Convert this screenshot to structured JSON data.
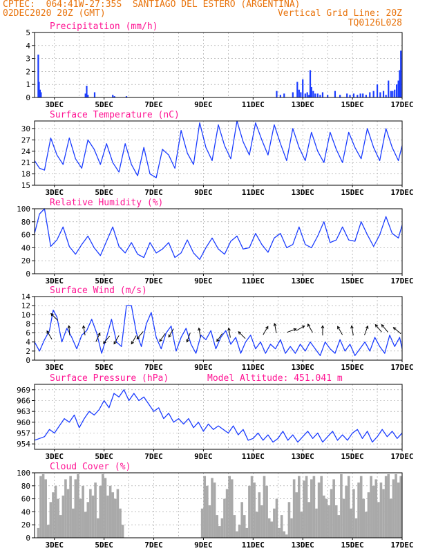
{
  "header": {
    "line1": "CPTEC:  064:41W-27:35S  SANTIAGO DEL ESTERO (ARGENTINA)",
    "date": "02DEC2020 20Z (GMT)",
    "grid_note": "Vertical Grid Line: 20Z",
    "model_code": "TQ0126L028",
    "accent_color": "#e8730c",
    "title_color": "#ff1493",
    "series_color": "#1a3cff"
  },
  "x_axis": {
    "tick_labels": [
      "3DEC",
      "5DEC",
      "7DEC",
      "9DEC",
      "11DEC",
      "13DEC",
      "15DEC",
      "17DEC"
    ],
    "tick_days": [
      3,
      5,
      7,
      9,
      11,
      13,
      15,
      17
    ],
    "range_days": [
      2.2,
      17.0
    ],
    "vertical_grid_step_days": 1
  },
  "chart_data": [
    {
      "id": "precip",
      "type": "bar",
      "title": "Precipitation (mm/h)",
      "ylim": [
        0,
        5
      ],
      "yticks": [
        0,
        1,
        2,
        3,
        4,
        5
      ],
      "color": "#1a3cff",
      "x": [
        2.35,
        2.38,
        2.42,
        2.46,
        4.25,
        4.3,
        4.35,
        4.62,
        5.35,
        5.42,
        5.9,
        11.95,
        12.1,
        12.25,
        12.6,
        12.78,
        12.85,
        12.92,
        13.0,
        13.1,
        13.18,
        13.25,
        13.3,
        13.35,
        13.42,
        13.5,
        13.6,
        13.7,
        13.8,
        14.0,
        14.3,
        14.5,
        14.78,
        14.9,
        15.05,
        15.2,
        15.32,
        15.42,
        15.55,
        15.7,
        15.85,
        16.0,
        16.12,
        16.25,
        16.35,
        16.45,
        16.55,
        16.62,
        16.7,
        16.78,
        16.85,
        16.9,
        16.95
      ],
      "values": [
        3.3,
        1.2,
        0.6,
        0.4,
        0.3,
        0.9,
        0.2,
        0.4,
        0.2,
        0.1,
        0.1,
        0.5,
        0.2,
        0.3,
        0.4,
        1.2,
        0.6,
        0.4,
        1.4,
        0.3,
        0.4,
        0.2,
        2.1,
        0.8,
        0.5,
        0.3,
        0.3,
        0.2,
        0.4,
        0.2,
        0.5,
        0.2,
        0.3,
        0.2,
        0.3,
        0.2,
        0.3,
        0.3,
        0.2,
        0.4,
        0.5,
        1.0,
        0.4,
        0.5,
        0.2,
        1.3,
        0.5,
        0.5,
        0.6,
        1.0,
        1.3,
        2.1,
        3.6
      ]
    },
    {
      "id": "temp",
      "type": "line",
      "title": "Surface Temperature (nC)",
      "ylim": [
        15,
        32
      ],
      "yticks": [
        15,
        18,
        21,
        24,
        27,
        30
      ],
      "color": "#1a3cff",
      "x": [
        2.2,
        2.4,
        2.6,
        2.85,
        3.1,
        3.35,
        3.6,
        3.85,
        4.1,
        4.35,
        4.6,
        4.85,
        5.1,
        5.35,
        5.6,
        5.85,
        6.1,
        6.35,
        6.6,
        6.85,
        7.1,
        7.35,
        7.6,
        7.85,
        8.1,
        8.35,
        8.6,
        8.85,
        9.1,
        9.35,
        9.6,
        9.85,
        10.1,
        10.35,
        10.6,
        10.85,
        11.1,
        11.35,
        11.6,
        11.85,
        12.1,
        12.35,
        12.6,
        12.85,
        13.1,
        13.35,
        13.6,
        13.85,
        14.1,
        14.35,
        14.6,
        14.85,
        15.1,
        15.35,
        15.6,
        15.85,
        16.1,
        16.35,
        16.6,
        16.85,
        17.0
      ],
      "values": [
        21.5,
        19.5,
        19,
        27.5,
        23,
        20.5,
        27.5,
        22,
        19.5,
        27,
        24.5,
        20.5,
        26,
        21,
        18.5,
        26,
        20.5,
        17.5,
        25,
        18,
        17,
        24.5,
        23,
        19.5,
        29.5,
        23.5,
        20.5,
        31.5,
        25,
        21.5,
        31,
        25.5,
        22,
        32,
        26.5,
        23,
        31.5,
        27,
        23,
        31,
        26,
        21.5,
        30,
        25,
        21.5,
        29,
        24,
        21,
        29,
        24.5,
        21,
        29,
        25,
        22,
        30,
        25,
        21.5,
        30,
        25,
        21.5,
        25.5
      ]
    },
    {
      "id": "rh",
      "type": "line",
      "title": "Relative Humidity (%)",
      "ylim": [
        0,
        100
      ],
      "yticks": [
        0,
        20,
        40,
        60,
        80,
        100
      ],
      "color": "#1a3cff",
      "x": [
        2.2,
        2.4,
        2.6,
        2.85,
        3.1,
        3.35,
        3.6,
        3.85,
        4.1,
        4.35,
        4.6,
        4.85,
        5.1,
        5.35,
        5.6,
        5.85,
        6.1,
        6.35,
        6.6,
        6.85,
        7.1,
        7.35,
        7.6,
        7.85,
        8.1,
        8.35,
        8.6,
        8.85,
        9.1,
        9.35,
        9.6,
        9.85,
        10.1,
        10.35,
        10.6,
        10.85,
        11.1,
        11.35,
        11.6,
        11.85,
        12.1,
        12.35,
        12.6,
        12.85,
        13.1,
        13.35,
        13.6,
        13.85,
        14.1,
        14.35,
        14.6,
        14.85,
        15.1,
        15.35,
        15.6,
        15.85,
        16.1,
        16.35,
        16.6,
        16.85,
        17.0
      ],
      "values": [
        62,
        92,
        100,
        42,
        52,
        72,
        42,
        30,
        45,
        58,
        40,
        28,
        50,
        72,
        42,
        32,
        48,
        30,
        25,
        48,
        32,
        38,
        48,
        25,
        32,
        52,
        32,
        22,
        40,
        55,
        38,
        30,
        50,
        58,
        38,
        40,
        62,
        45,
        33,
        55,
        62,
        40,
        45,
        72,
        45,
        40,
        58,
        80,
        48,
        52,
        72,
        52,
        50,
        80,
        60,
        42,
        60,
        88,
        62,
        55,
        75
      ]
    },
    {
      "id": "wind",
      "type": "line",
      "title": "Surface Wind (m/s)",
      "ylim": [
        0,
        14
      ],
      "yticks": [
        0,
        2,
        4,
        6,
        8,
        10,
        12,
        14
      ],
      "color": "#1a3cff",
      "x": [
        2.2,
        2.4,
        2.6,
        2.8,
        2.95,
        3.1,
        3.3,
        3.5,
        3.7,
        3.9,
        4.1,
        4.3,
        4.5,
        4.7,
        4.9,
        5.1,
        5.3,
        5.5,
        5.7,
        5.9,
        6.1,
        6.3,
        6.5,
        6.7,
        6.9,
        7.1,
        7.3,
        7.5,
        7.7,
        7.9,
        8.1,
        8.3,
        8.5,
        8.7,
        8.9,
        9.1,
        9.3,
        9.5,
        9.7,
        9.9,
        10.1,
        10.3,
        10.5,
        10.7,
        10.9,
        11.1,
        11.3,
        11.5,
        11.7,
        11.9,
        12.1,
        12.3,
        12.5,
        12.7,
        12.9,
        13.1,
        13.3,
        13.5,
        13.7,
        13.9,
        14.1,
        14.3,
        14.5,
        14.7,
        14.9,
        15.1,
        15.3,
        15.5,
        15.7,
        15.9,
        16.1,
        16.3,
        16.5,
        16.7,
        16.9,
        17.0
      ],
      "values": [
        4,
        2,
        4.5,
        6.5,
        11,
        9.5,
        4,
        7,
        5,
        2.5,
        5.5,
        6.5,
        9,
        6,
        1.5,
        5,
        9,
        4,
        3,
        12,
        12,
        6,
        3,
        8,
        10.5,
        5,
        2.5,
        6,
        7.5,
        2,
        5,
        7,
        3.5,
        1.5,
        5.5,
        4.5,
        6.5,
        2.5,
        5,
        6.5,
        3.5,
        5,
        1.5,
        4,
        5.5,
        2.5,
        4,
        1.5,
        3.5,
        2.5,
        4.5,
        1.5,
        3,
        1.5,
        3.5,
        2,
        4,
        2.5,
        1,
        4,
        2.5,
        1.5,
        4.5,
        2,
        3.5,
        1,
        2.5,
        4,
        2,
        5,
        3,
        1.5,
        5.5,
        3,
        5,
        2.5
      ],
      "arrows": [
        {
          "day": 2.8,
          "speed": 5.5,
          "dir_deg": 330
        },
        {
          "day": 3.0,
          "speed": 9.5,
          "dir_deg": 315
        },
        {
          "day": 3.6,
          "speed": 6.5,
          "dir_deg": 355
        },
        {
          "day": 4.2,
          "speed": 6.5,
          "dir_deg": 350
        },
        {
          "day": 4.75,
          "speed": 5.0,
          "dir_deg": 25
        },
        {
          "day": 5.1,
          "speed": 4.5,
          "dir_deg": 220
        },
        {
          "day": 5.5,
          "speed": 4.5,
          "dir_deg": 210
        },
        {
          "day": 6.2,
          "speed": 4.5,
          "dir_deg": 210
        },
        {
          "day": 6.45,
          "speed": 5.5,
          "dir_deg": 220
        },
        {
          "day": 7.35,
          "speed": 5.0,
          "dir_deg": 215
        },
        {
          "day": 7.7,
          "speed": 6.0,
          "dir_deg": 210
        },
        {
          "day": 8.4,
          "speed": 5.0,
          "dir_deg": 200
        },
        {
          "day": 8.85,
          "speed": 6.0,
          "dir_deg": 350
        },
        {
          "day": 9.65,
          "speed": 5.0,
          "dir_deg": 215
        },
        {
          "day": 10.05,
          "speed": 6.0,
          "dir_deg": 350
        },
        {
          "day": 10.55,
          "speed": 5.5,
          "dir_deg": 315
        },
        {
          "day": 11.5,
          "speed": 6.5,
          "dir_deg": 30
        },
        {
          "day": 11.9,
          "speed": 7.0,
          "dir_deg": 350
        },
        {
          "day": 12.55,
          "speed": 6.5,
          "dir_deg": 70
        },
        {
          "day": 12.9,
          "speed": 7.0,
          "dir_deg": 60
        },
        {
          "day": 13.3,
          "speed": 7.0,
          "dir_deg": 330
        },
        {
          "day": 13.8,
          "speed": 6.5,
          "dir_deg": 0
        },
        {
          "day": 14.5,
          "speed": 6.5,
          "dir_deg": 330
        },
        {
          "day": 15.0,
          "speed": 6.5,
          "dir_deg": 350
        },
        {
          "day": 15.55,
          "speed": 6.5,
          "dir_deg": 20
        },
        {
          "day": 16.05,
          "speed": 7.0,
          "dir_deg": 320
        },
        {
          "day": 16.3,
          "speed": 7.0,
          "dir_deg": 320
        },
        {
          "day": 16.8,
          "speed": 6.5,
          "dir_deg": 310
        }
      ]
    },
    {
      "id": "pres",
      "type": "line",
      "title": "Surface Pressure (hPa)",
      "subtitle": "Model Altitude: 451.041 m",
      "ylim": [
        952.5,
        970.5
      ],
      "yticks": [
        954,
        957,
        960,
        963,
        966,
        969
      ],
      "color": "#1a3cff",
      "x": [
        2.2,
        2.4,
        2.6,
        2.8,
        3.0,
        3.2,
        3.4,
        3.6,
        3.8,
        4.0,
        4.2,
        4.4,
        4.6,
        4.8,
        5.0,
        5.2,
        5.4,
        5.6,
        5.8,
        6.0,
        6.2,
        6.4,
        6.6,
        6.8,
        7.0,
        7.2,
        7.4,
        7.6,
        7.8,
        8.0,
        8.2,
        8.4,
        8.6,
        8.8,
        9.0,
        9.2,
        9.4,
        9.6,
        9.8,
        10.0,
        10.2,
        10.4,
        10.6,
        10.8,
        11.0,
        11.2,
        11.4,
        11.6,
        11.8,
        12.0,
        12.2,
        12.4,
        12.6,
        12.8,
        13.0,
        13.2,
        13.4,
        13.6,
        13.8,
        14.0,
        14.2,
        14.4,
        14.6,
        14.8,
        15.0,
        15.2,
        15.4,
        15.6,
        15.8,
        16.0,
        16.2,
        16.4,
        16.6,
        16.8,
        17.0
      ],
      "values": [
        955,
        955.5,
        956,
        958,
        957,
        959,
        961,
        960,
        962,
        958.5,
        961,
        963,
        962,
        963.5,
        966,
        964,
        968,
        967,
        969,
        966,
        968,
        966,
        967,
        965,
        963,
        964,
        961,
        962.5,
        960,
        961,
        959.5,
        961,
        958.5,
        960,
        957.5,
        959.5,
        958,
        959,
        958,
        957,
        959,
        956.5,
        958,
        955,
        955.5,
        957,
        955,
        956.5,
        954.5,
        955.5,
        957.5,
        955,
        956.5,
        954.5,
        956,
        957.5,
        955.5,
        957,
        954.5,
        956,
        957.5,
        955,
        956.5,
        955,
        957,
        958,
        955.5,
        957.5,
        954.5,
        956,
        958,
        956,
        957.5,
        955.5,
        957
      ]
    },
    {
      "id": "cloud",
      "type": "bar",
      "title": "Cloud Cover (%)",
      "ylim": [
        0,
        100
      ],
      "yticks": [
        0,
        20,
        40,
        60,
        80,
        100
      ],
      "color": "#a9a9a9",
      "x": [
        2.35,
        2.45,
        2.55,
        2.65,
        2.75,
        2.85,
        2.95,
        3.05,
        3.15,
        3.25,
        3.35,
        3.45,
        3.55,
        3.65,
        3.75,
        3.85,
        3.95,
        4.05,
        4.15,
        4.25,
        4.35,
        4.45,
        4.55,
        4.65,
        4.75,
        4.85,
        4.95,
        5.05,
        5.15,
        5.25,
        5.35,
        5.45,
        5.55,
        5.65,
        5.75,
        8.95,
        9.05,
        9.15,
        9.25,
        9.35,
        9.45,
        9.55,
        9.65,
        9.75,
        9.85,
        9.95,
        10.05,
        10.15,
        10.25,
        10.35,
        10.45,
        10.55,
        10.65,
        10.75,
        10.85,
        10.95,
        11.05,
        11.15,
        11.25,
        11.35,
        11.45,
        11.55,
        11.65,
        11.75,
        11.85,
        11.95,
        12.05,
        12.15,
        12.25,
        12.35,
        12.45,
        12.55,
        12.65,
        12.75,
        12.85,
        12.95,
        13.05,
        13.15,
        13.25,
        13.35,
        13.45,
        13.55,
        13.65,
        13.75,
        13.85,
        13.95,
        14.05,
        14.15,
        14.25,
        14.35,
        14.45,
        14.55,
        14.65,
        14.75,
        14.85,
        14.95,
        15.05,
        15.15,
        15.25,
        15.35,
        15.45,
        15.55,
        15.65,
        15.75,
        15.85,
        15.95,
        16.05,
        16.15,
        16.25,
        16.35,
        16.45,
        16.55,
        16.65,
        16.75,
        16.85,
        16.95
      ],
      "values": [
        15,
        95,
        98,
        90,
        20,
        55,
        70,
        80,
        60,
        35,
        65,
        90,
        75,
        95,
        45,
        90,
        98,
        60,
        80,
        40,
        55,
        75,
        65,
        85,
        30,
        80,
        98,
        92,
        65,
        80,
        70,
        60,
        75,
        45,
        20,
        45,
        95,
        80,
        50,
        92,
        85,
        35,
        18,
        30,
        60,
        75,
        95,
        90,
        35,
        10,
        20,
        55,
        35,
        15,
        80,
        95,
        85,
        40,
        70,
        50,
        95,
        80,
        30,
        25,
        45,
        60,
        15,
        35,
        10,
        5,
        55,
        30,
        90,
        70,
        95,
        40,
        88,
        95,
        55,
        90,
        95,
        45,
        85,
        95,
        65,
        60,
        50,
        75,
        90,
        50,
        35,
        98,
        60,
        80,
        95,
        45,
        75,
        30,
        85,
        95,
        60,
        40,
        70,
        95,
        80,
        90,
        55,
        85,
        75,
        95,
        98,
        60,
        90,
        98,
        85,
        95
      ]
    }
  ]
}
